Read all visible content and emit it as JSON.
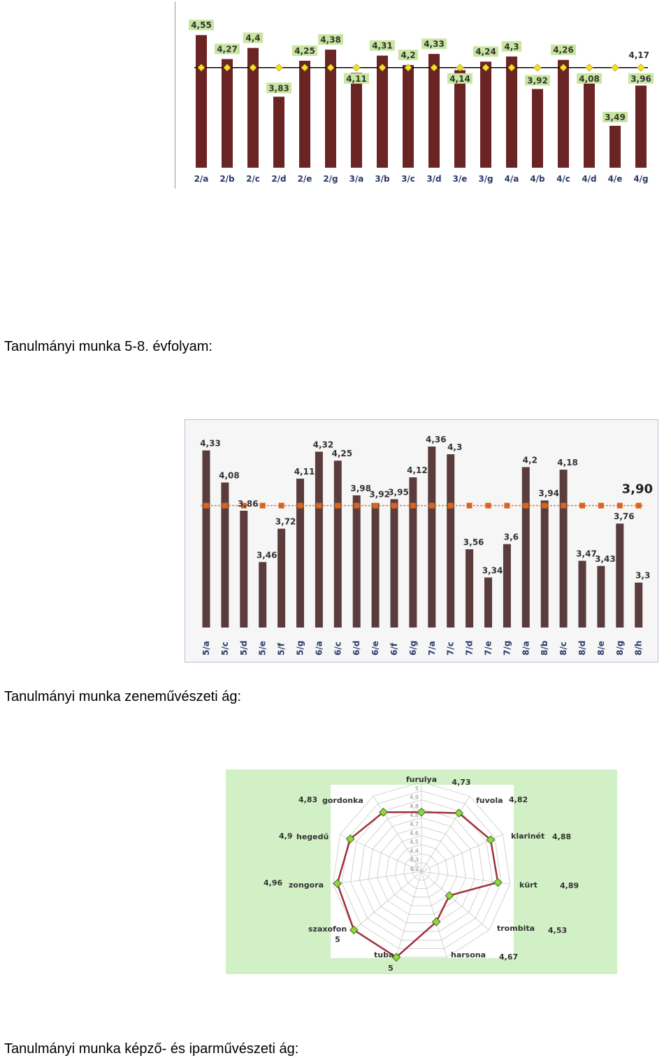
{
  "headings": {
    "h1": "Tanulmányi munka 5-8. évfolyam:",
    "h2": "Tanulmányi munka zeneművészeti ág:",
    "h3": "Tanulmányi munka képző- és iparművészeti ág:"
  },
  "chart_data": [
    {
      "type": "bar",
      "title": "",
      "categories": [
        "2/a",
        "2/b",
        "2/c",
        "2/d",
        "2/e",
        "2/g",
        "3/a",
        "3/b",
        "3/c",
        "3/d",
        "3/e",
        "3/g",
        "4/a",
        "4/b",
        "4/c",
        "4/d",
        "4/e",
        "4/g"
      ],
      "value_labels": [
        "4,55",
        "4,27",
        "4,4",
        "3,83",
        "4,25",
        "4,38",
        "4,11",
        "4,31",
        "4,2",
        "4,33",
        "4,14",
        "4,24",
        "4,3",
        "3,92",
        "4,26",
        "4,08",
        "3,49",
        "3,96"
      ],
      "values": [
        4.55,
        4.27,
        4.4,
        3.83,
        4.25,
        4.38,
        4.11,
        4.31,
        4.2,
        4.33,
        4.14,
        4.24,
        4.3,
        3.92,
        4.26,
        4.08,
        3.49,
        3.96
      ],
      "average_label": "4,17",
      "average": 4.17,
      "ylim": [
        3.0,
        4.65
      ],
      "colors": {
        "bar": "#6b2424",
        "average_line": "#000000",
        "marker": "#f5e02a",
        "label_bg": "#c8e6a0",
        "plot_bg": "#ffffff",
        "cat_text": "#2c3a6a"
      }
    },
    {
      "type": "bar",
      "title": "",
      "categories": [
        "5/a",
        "5/c",
        "5/d",
        "5/e",
        "5/f",
        "5/g",
        "6/a",
        "6/c",
        "6/d",
        "6/e",
        "6/f",
        "6/g",
        "7/a",
        "7/c",
        "7/d",
        "7/e",
        "7/g",
        "8/a",
        "8/b",
        "8/c",
        "8/d",
        "8/e",
        "8/g",
        "8/h"
      ],
      "value_labels": [
        "4,33",
        "4,08",
        "3,86",
        "3,46",
        "3,72",
        "4,11",
        "4,32",
        "4,25",
        "3,98",
        "3,92",
        "3,95",
        "4,12",
        "4,36",
        "4,3",
        "3,56",
        "3,34",
        "3,6",
        "4,2",
        "3,94",
        "4,18",
        "3,47",
        "3,43",
        "3,76",
        "3,3"
      ],
      "values": [
        4.33,
        4.08,
        3.86,
        3.46,
        3.72,
        4.11,
        4.32,
        4.25,
        3.98,
        3.92,
        3.95,
        4.12,
        4.36,
        4.3,
        3.56,
        3.34,
        3.6,
        4.2,
        3.94,
        4.18,
        3.47,
        3.43,
        3.76,
        3.3
      ],
      "average_label": "3,90",
      "average": 3.9,
      "ylim": [
        2.95,
        4.42
      ],
      "colors": {
        "bar": "#5a3c3c",
        "average_line": "#e08020",
        "marker": "#d9641e",
        "plot_bg": "#f6f6f6",
        "frame": "#b4c0d8",
        "cat_text": "#2c3a6a"
      }
    },
    {
      "type": "radar",
      "title": "",
      "categories": [
        "furulya",
        "fuvola",
        "klarinét",
        "kürt",
        "trombita",
        "harsona",
        "tuba",
        "szaxofon",
        "zongora",
        "hegedű",
        "gordonka"
      ],
      "value_labels": [
        "4,73",
        "4,82",
        "4,88",
        "4,89",
        "4,53",
        "4,67",
        "5",
        "5",
        "4,96",
        "4,9",
        "4,83"
      ],
      "values": [
        4.73,
        4.82,
        4.88,
        4.89,
        4.53,
        4.67,
        5,
        5,
        4.96,
        4.9,
        4.83
      ],
      "axis_ticks": [
        "4,2",
        "4,3",
        "4,4",
        "4,5",
        "4,6",
        "4,7",
        "4,8",
        "4,8",
        "4,9",
        "5"
      ],
      "rlim": [
        4.2,
        5.0
      ],
      "colors": {
        "bg": "#d2f0c6",
        "grid": "#c8c8c8",
        "line": "#a0303a",
        "marker": "#9ad23c"
      }
    }
  ]
}
